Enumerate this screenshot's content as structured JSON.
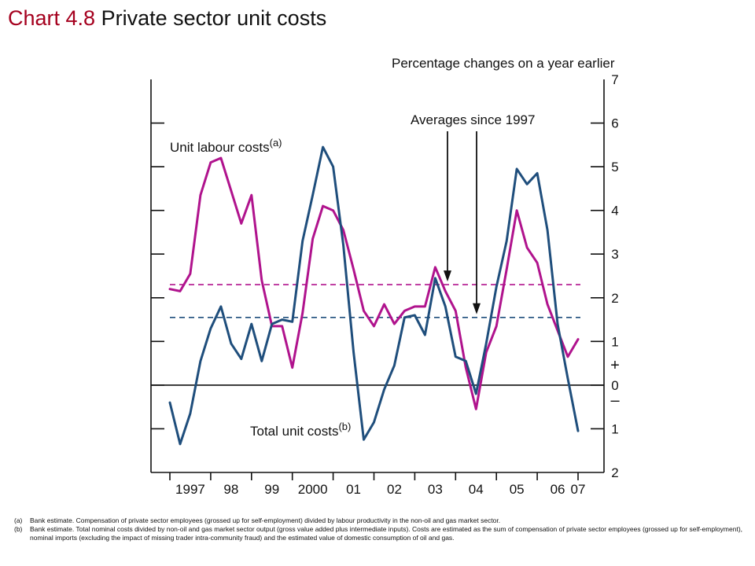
{
  "title": {
    "prefix": "Chart 4.8",
    "text": "Private sector unit costs"
  },
  "chart_data": {
    "type": "line",
    "subtitle": "Percentage changes on a year earlier",
    "x_tick_labels": [
      "1997",
      "98",
      "99",
      "2000",
      "01",
      "02",
      "03",
      "04",
      "05",
      "06",
      "07"
    ],
    "x_range": [
      1996.75,
      2007.1
    ],
    "ylim": [
      -2,
      7
    ],
    "y_tick_labels": [
      "2",
      "1",
      "0",
      "1",
      "2",
      "3",
      "4",
      "5",
      "6",
      "7"
    ],
    "y_ticks": [
      -2,
      -1,
      0,
      1,
      2,
      3,
      4,
      5,
      6,
      7
    ],
    "sign_labels": {
      "plus": "+",
      "minus": "–"
    },
    "zero_line": 0,
    "colors": {
      "unit_labour": "#b0138d",
      "total_unit": "#1f4e7c",
      "axis": "#111111"
    },
    "series": [
      {
        "name": "Unit labour costs",
        "superscript": "(a)",
        "color": "#b0138d",
        "x": [
          1997.0,
          1997.25,
          1997.5,
          1997.75,
          1998.0,
          1998.25,
          1998.5,
          1998.75,
          1999.0,
          1999.25,
          1999.5,
          1999.75,
          2000.0,
          2000.25,
          2000.5,
          2000.75,
          2001.0,
          2001.25,
          2001.5,
          2001.75,
          2002.0,
          2002.25,
          2002.5,
          2002.75,
          2003.0,
          2003.25,
          2003.5,
          2003.75,
          2004.0,
          2004.25,
          2004.5,
          2004.75,
          2005.0,
          2005.25,
          2005.5,
          2005.75,
          2006.0,
          2006.25,
          2006.5,
          2006.75,
          2007.0
        ],
        "values": [
          2.2,
          2.15,
          2.55,
          4.35,
          5.1,
          5.2,
          4.45,
          3.7,
          4.35,
          2.4,
          1.35,
          1.35,
          0.4,
          1.65,
          3.35,
          4.1,
          4.0,
          3.55,
          2.65,
          1.7,
          1.35,
          1.85,
          1.4,
          1.7,
          1.8,
          1.8,
          2.7,
          2.15,
          1.7,
          0.4,
          -0.55,
          0.75,
          1.35,
          2.65,
          4.0,
          3.15,
          2.8,
          1.85,
          1.25,
          0.65,
          1.05
        ]
      },
      {
        "name": "Total unit costs",
        "superscript": "(b)",
        "color": "#1f4e7c",
        "x": [
          1997.0,
          1997.25,
          1997.5,
          1997.75,
          1998.0,
          1998.25,
          1998.5,
          1998.75,
          1999.0,
          1999.25,
          1999.5,
          1999.75,
          2000.0,
          2000.25,
          2000.5,
          2000.75,
          2001.0,
          2001.25,
          2001.5,
          2001.75,
          2002.0,
          2002.25,
          2002.5,
          2002.75,
          2003.0,
          2003.25,
          2003.5,
          2003.75,
          2004.0,
          2004.25,
          2004.5,
          2004.75,
          2005.0,
          2005.25,
          2005.5,
          2005.75,
          2006.0,
          2006.25,
          2006.5,
          2006.75,
          2007.0
        ],
        "values": [
          -0.4,
          -1.35,
          -0.65,
          0.55,
          1.3,
          1.8,
          0.95,
          0.6,
          1.4,
          0.55,
          1.4,
          1.5,
          1.45,
          3.3,
          4.35,
          5.45,
          5.0,
          3.2,
          0.75,
          -1.25,
          -0.85,
          -0.1,
          0.45,
          1.55,
          1.6,
          1.15,
          2.45,
          1.8,
          0.65,
          0.55,
          -0.2,
          0.95,
          2.25,
          3.3,
          4.95,
          4.6,
          4.85,
          3.55,
          1.4,
          0.15,
          -1.05
        ]
      }
    ],
    "averages": {
      "unit_labour": 2.3,
      "total_unit": 1.55
    },
    "annotation": "Averages since 1997",
    "grid": false,
    "legend": "inline labels"
  },
  "footnotes": [
    {
      "mark": "(a)",
      "text": "Bank estimate.  Compensation of private sector employees (grossed up for self-employment) divided by labour productivity in the non-oil and gas market sector."
    },
    {
      "mark": "(b)",
      "text": "Bank estimate.  Total nominal costs divided by non-oil and gas market sector output (gross value added plus intermediate inputs).  Costs are estimated as the sum of compensation of private sector employees (grossed up for self-employment), nominal imports (excluding the impact of missing trader intra-community fraud) and the estimated value of domestic consumption of oil and gas."
    }
  ]
}
